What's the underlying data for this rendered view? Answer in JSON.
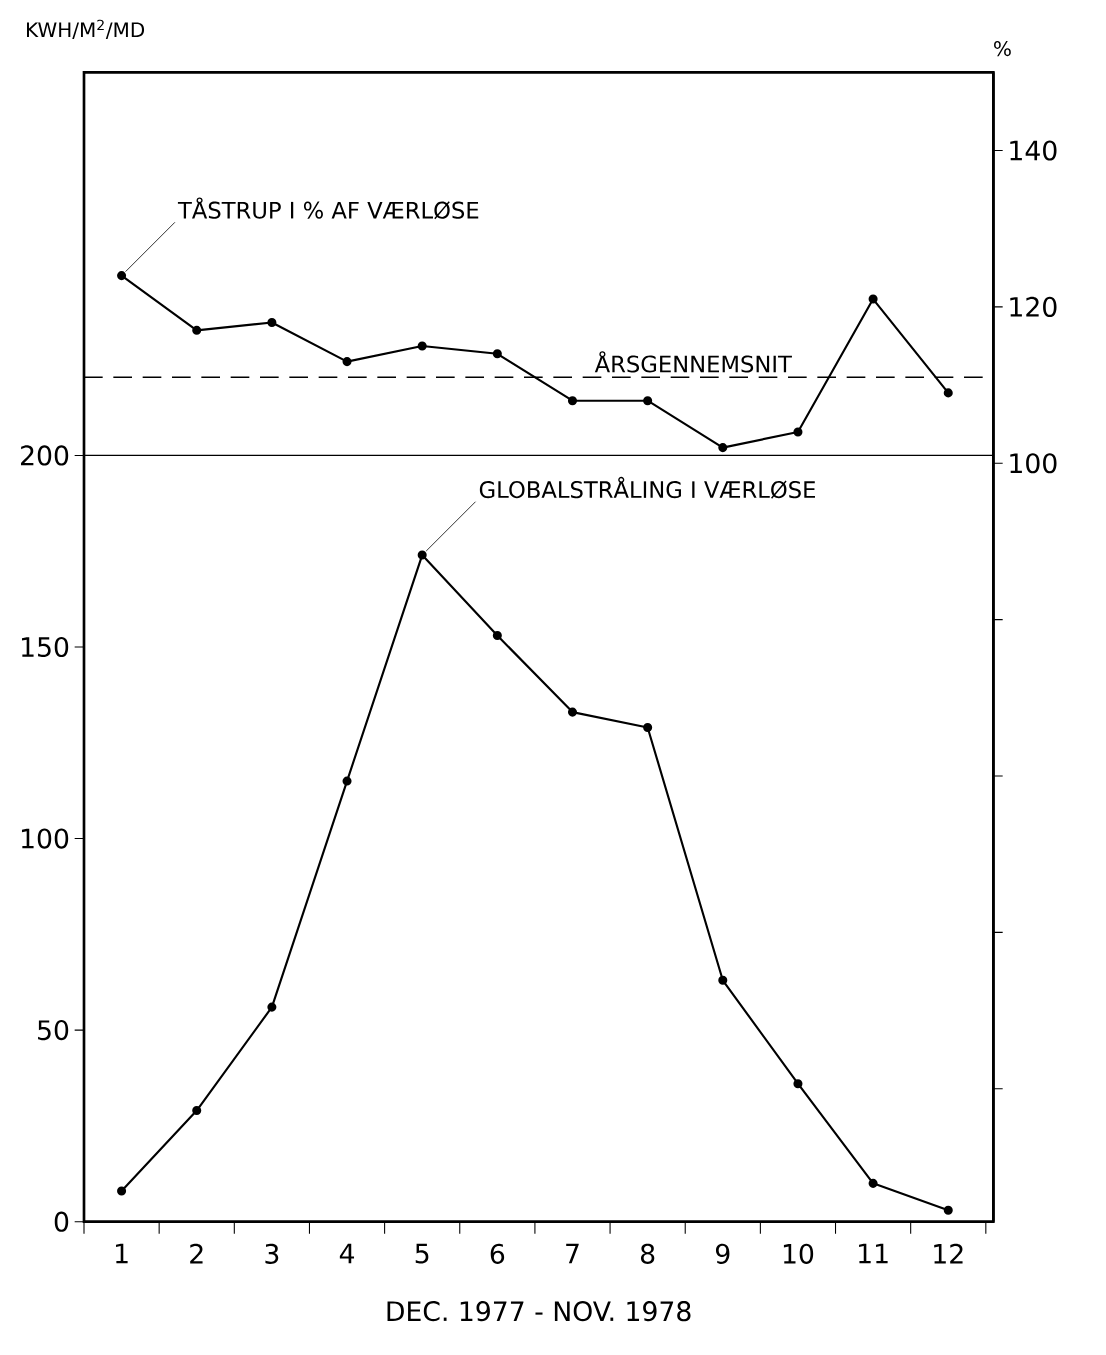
{
  "chart_data": {
    "type": "line",
    "xlabel": "DEC. 1977 - NOV. 1978",
    "ylabel": "KWH/M$^{2}$/MD",
    "y2label": "%",
    "x": [
      1,
      2,
      3,
      4,
      5,
      6,
      7,
      8,
      9,
      10,
      11,
      12
    ],
    "xlim": [
      0.5,
      12.6
    ],
    "xticks": [
      {
        "value": 0.5,
        "label": null
      },
      1,
      {
        "value": 1.5,
        "label": null
      },
      2,
      {
        "value": 2.5,
        "label": null
      },
      3,
      {
        "value": 3.5,
        "label": null
      },
      4,
      {
        "value": 4.5,
        "label": null
      },
      5,
      {
        "value": 5.5,
        "label": null
      },
      6,
      {
        "value": 6.5,
        "label": null
      },
      7,
      {
        "value": 7.5,
        "label": null
      },
      8,
      {
        "value": 8.5,
        "label": null
      },
      9,
      {
        "value": 9.5,
        "label": null
      },
      10,
      {
        "value": 10.5,
        "label": null
      },
      11,
      {
        "value": 11.5,
        "label": null
      },
      12,
      {
        "value": 12.5,
        "label": null
      }
    ],
    "ylim": [
      0,
      300
    ],
    "yticks": [
      0,
      50,
      100,
      150,
      200
    ],
    "y2lim": [
      3,
      150
    ],
    "y2ticks": [
      {
        "value": 20,
        "label": null
      },
      {
        "value": 40,
        "label": null
      },
      {
        "value": 60,
        "label": null
      },
      {
        "value": 80,
        "label": null
      },
      100,
      120,
      140
    ],
    "marker": "circle",
    "series": [
      {
        "name": "GLOBALSTRÅLING I VÆRLØSE",
        "color": "#000000",
        "values": [
          8,
          29,
          56,
          115,
          174,
          153,
          133,
          129,
          63,
          36,
          10,
          3
        ]
      },
      {
        "name": "TÅSTRUP I % AF VÆRLØSE",
        "color": "#000000",
        "axis": "y2",
        "values": [
          124,
          117,
          118,
          113,
          115,
          114,
          108,
          108,
          102,
          104,
          121,
          109
        ]
      }
    ],
    "ref_lines": [
      {
        "axis": "y",
        "value": 200,
        "line_style": "solid",
        "color": "#000000"
      },
      {
        "axis": "y2",
        "value": 111,
        "label": "ÅRSGENNEMSNIT",
        "line_style": "dashed",
        "color": "#000000"
      }
    ]
  }
}
